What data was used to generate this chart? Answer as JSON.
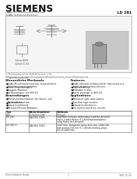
{
  "bg_color": "#ffffff",
  "siemens_title": "SIEMENS",
  "subtitle_de": "GaAs-IR-Lumineszenzdiode",
  "subtitle_en": "GaAs Infrared Emitter",
  "part_number": "LD 261",
  "section_features_de": "Wesentliche Merkmale",
  "section_features_en": "Features",
  "features_de": [
    "GaAs-IR-Lumineszenzdiode, hergestellt im",
    "Schmelzepitaxieverfahren",
    "Hohe Zuverlässigkeit",
    "Gruppen-Matches",
    "Gehäusetypen mit BPX 81"
  ],
  "features_en": [
    "GaAs infrared-emitting diode, fabricated in a",
    "liquid-phase epitaxy process",
    "High reliability",
    "Available in bins",
    "Same package as BPX 81"
  ],
  "section_apps_de": "Anwendungen",
  "section_apps_en": "Applications",
  "apps_de": [
    "Miniaturlichtschranken für Gleich- und",
    "Wechsellichtbetrieb",
    "Lochstreifen",
    "Industrieelektronik",
    "Messwert/Steuer-Abfragen"
  ],
  "apps_en": [
    "Miniature opto-interrupters",
    "Punched tape readers",
    "Industrial electronics",
    "For control and drive circuits"
  ],
  "note_line": "Refers to own, unless noted unless gegangened-Entschlüsse-Circuity, unless otherwise specified.",
  "table_headers": [
    "Typ\nType",
    "Bestellnummer\nOrdering Code",
    "Gehäuse\nPackage"
  ],
  "table_row1_type": "LD 261",
  "table_row1_code": "Q62702-C265",
  "table_row1_pkg": [
    "Leadframe-Gehäuse, klares Epoxy Gussharz, Anschliff-",
    "ring in 3 selbst-Reihen (T₀), Rasterabstandsabmes-",
    "sung: Raster am Lieferprofil"
  ],
  "table_row2_type": "LD 261 H",
  "table_row2_code": "Q62702-C267",
  "table_row2_pkg": [
    "Lead frame, transparent epoxy resin case, solder tabs,",
    "lead spacing 2.54 mm (T₀), cathode marking, projec-",
    "tion as solder tabs"
  ],
  "footer_left": "Semiconductor Group",
  "footer_mid": "1",
  "footer_right": "1997-11-01"
}
